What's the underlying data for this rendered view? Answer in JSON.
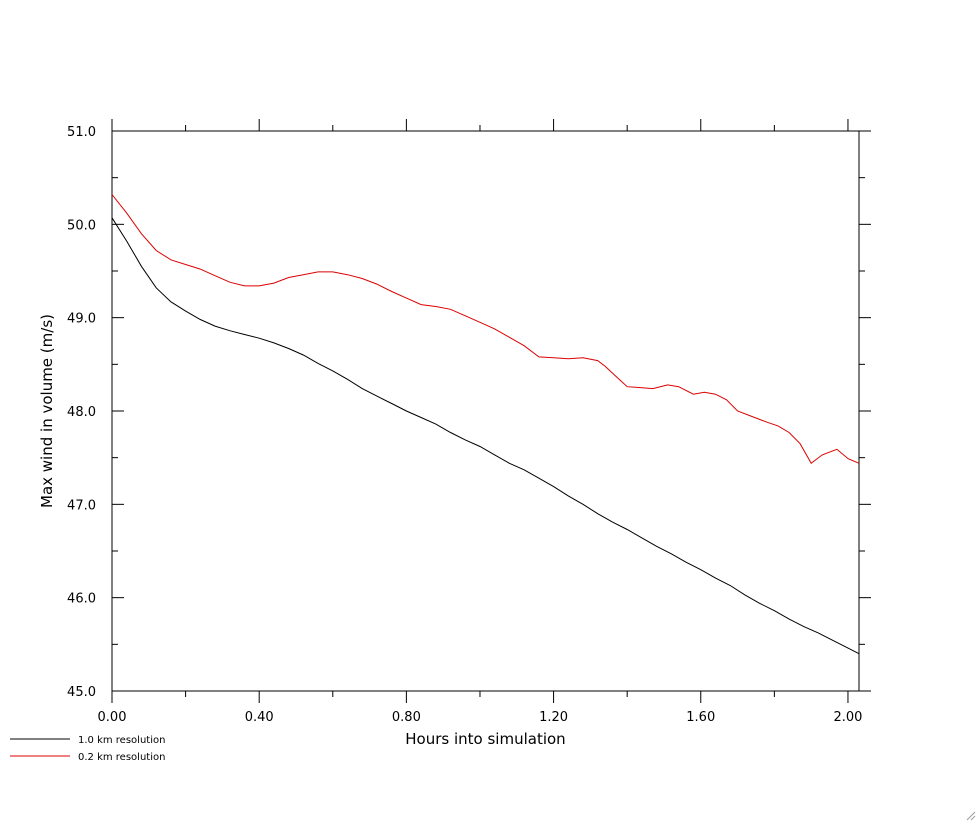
{
  "chart_data": {
    "type": "line",
    "xlabel": "Hours into simulation",
    "ylabel": "Max wind in volume (m/s)",
    "xlim": [
      0.0,
      2.03
    ],
    "ylim": [
      45.0,
      51.0
    ],
    "x_ticks": [
      0.0,
      0.4,
      0.8,
      1.2,
      1.6,
      2.0
    ],
    "x_tick_labels": [
      "0.00",
      "0.40",
      "0.80",
      "1.20",
      "1.60",
      "2.00"
    ],
    "y_ticks": [
      45.0,
      46.0,
      47.0,
      48.0,
      49.0,
      50.0,
      51.0
    ],
    "y_tick_labels": [
      "45.0",
      "46.0",
      "47.0",
      "48.0",
      "49.0",
      "50.0",
      "51.0"
    ],
    "grid": false,
    "legend_position": "bottom-left",
    "series": [
      {
        "name": "1.0 km resolution",
        "color": "#000000",
        "x": [
          0.0,
          0.04,
          0.08,
          0.12,
          0.16,
          0.2,
          0.24,
          0.28,
          0.32,
          0.36,
          0.4,
          0.44,
          0.48,
          0.52,
          0.56,
          0.6,
          0.64,
          0.68,
          0.72,
          0.76,
          0.8,
          0.84,
          0.88,
          0.92,
          0.96,
          1.0,
          1.04,
          1.08,
          1.12,
          1.16,
          1.2,
          1.24,
          1.28,
          1.32,
          1.36,
          1.4,
          1.44,
          1.48,
          1.52,
          1.56,
          1.6,
          1.64,
          1.68,
          1.72,
          1.76,
          1.8,
          1.84,
          1.88,
          1.92,
          1.96,
          2.0,
          2.03
        ],
        "y": [
          50.07,
          49.82,
          49.55,
          49.32,
          49.17,
          49.07,
          48.98,
          48.91,
          48.86,
          48.82,
          48.78,
          48.73,
          48.67,
          48.6,
          48.51,
          48.43,
          48.34,
          48.24,
          48.16,
          48.08,
          48.0,
          47.93,
          47.86,
          47.77,
          47.69,
          47.62,
          47.53,
          47.44,
          47.37,
          47.28,
          47.19,
          47.09,
          47.0,
          46.9,
          46.81,
          46.73,
          46.64,
          46.55,
          46.47,
          46.38,
          46.3,
          46.21,
          46.13,
          46.03,
          45.94,
          45.86,
          45.77,
          45.69,
          45.62,
          45.54,
          45.46,
          45.4
        ]
      },
      {
        "name": "0.2 km resolution",
        "color": "#dd0000",
        "x": [
          0.0,
          0.04,
          0.08,
          0.12,
          0.16,
          0.2,
          0.24,
          0.28,
          0.32,
          0.36,
          0.4,
          0.44,
          0.48,
          0.52,
          0.56,
          0.6,
          0.64,
          0.68,
          0.72,
          0.76,
          0.8,
          0.84,
          0.88,
          0.92,
          0.96,
          1.0,
          1.04,
          1.08,
          1.12,
          1.16,
          1.2,
          1.24,
          1.28,
          1.32,
          1.34,
          1.37,
          1.4,
          1.44,
          1.47,
          1.51,
          1.54,
          1.58,
          1.61,
          1.64,
          1.67,
          1.7,
          1.74,
          1.78,
          1.81,
          1.84,
          1.87,
          1.9,
          1.93,
          1.97,
          2.0,
          2.03
        ],
        "y": [
          50.32,
          50.12,
          49.9,
          49.72,
          49.62,
          49.57,
          49.52,
          49.45,
          49.38,
          49.34,
          49.34,
          49.37,
          49.43,
          49.46,
          49.49,
          49.49,
          49.46,
          49.42,
          49.36,
          49.28,
          49.21,
          49.14,
          49.12,
          49.09,
          49.02,
          48.95,
          48.88,
          48.79,
          48.7,
          48.58,
          48.57,
          48.56,
          48.57,
          48.54,
          48.48,
          48.37,
          48.26,
          48.25,
          48.24,
          48.28,
          48.26,
          48.18,
          48.2,
          48.18,
          48.12,
          48.0,
          47.94,
          47.88,
          47.84,
          47.77,
          47.65,
          47.44,
          47.53,
          47.59,
          47.49,
          47.44
        ]
      }
    ]
  }
}
